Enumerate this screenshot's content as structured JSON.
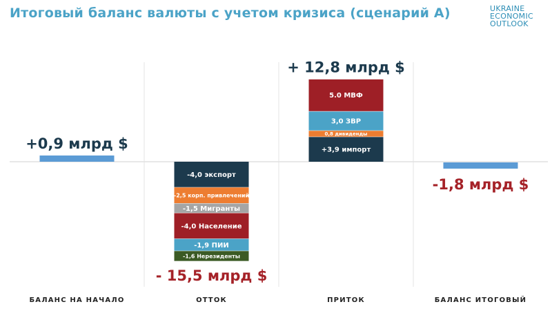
{
  "title": "Итоговый баланс валюты с учетом кризиса (сценарий А)",
  "logo": [
    "UKRAINE",
    "ECONOMIC",
    "OUTLOOK"
  ],
  "colors": {
    "title": "#4ba3c7",
    "positive_total": "#1c3a4d",
    "negative_total": "#a52228",
    "balance_bar": "#5b9bd5"
  },
  "chart_data": {
    "type": "bar",
    "subtype": "waterfall",
    "unit": "млрд $",
    "categories": [
      "БАЛАНС НА НАЧАЛО",
      "ОТТОК",
      "ПРИТОК",
      "БАЛАНС ИТОГОВЫЙ"
    ],
    "columns": [
      {
        "category": "БАЛАНС НА НАЧАЛО",
        "total": 0.9,
        "total_label": "+0,9 млрд $",
        "segments": [
          {
            "label": "",
            "value": 0.9,
            "color": "#5b9bd5"
          }
        ]
      },
      {
        "category": "ОТТОК",
        "total": -15.5,
        "total_label": "- 15,5 млрд $",
        "segments": [
          {
            "label": "-4,0 экспорт",
            "value": -4.0,
            "color": "#1c3a4d"
          },
          {
            "label": "-2,5 корп. привлечений",
            "value": -2.5,
            "color": "#ed7d31"
          },
          {
            "label": "-1,5 Мигранты",
            "value": -1.5,
            "color": "#a5a5a5"
          },
          {
            "label": "-4,0 Население",
            "value": -4.0,
            "color": "#9e1f26"
          },
          {
            "label": "-1,9 ПИИ",
            "value": -1.9,
            "color": "#4ba3c7"
          },
          {
            "label": "-1,6 Нерезиденты",
            "value": -1.6,
            "color": "#3b5a24"
          }
        ]
      },
      {
        "category": "ПРИТОК",
        "total": 12.8,
        "total_label": "+ 12,8 млрд $",
        "segments": [
          {
            "label": "+3,9 импорт",
            "value": 3.9,
            "color": "#1c3a4d"
          },
          {
            "label": "0,8 дивиденды",
            "value": 0.8,
            "color": "#ed7d31"
          },
          {
            "label": "3,0 ЗВР",
            "value": 3.0,
            "color": "#4ba3c7"
          },
          {
            "label": "5.0 МВФ",
            "value": 5.0,
            "color": "#9e1f26"
          }
        ]
      },
      {
        "category": "БАЛАНС ИТОГОВЫЙ",
        "total": -1.8,
        "total_label": "-1,8 млрд $",
        "segments": [
          {
            "label": "",
            "value": -1.8,
            "color": "#5b9bd5"
          }
        ]
      }
    ]
  }
}
